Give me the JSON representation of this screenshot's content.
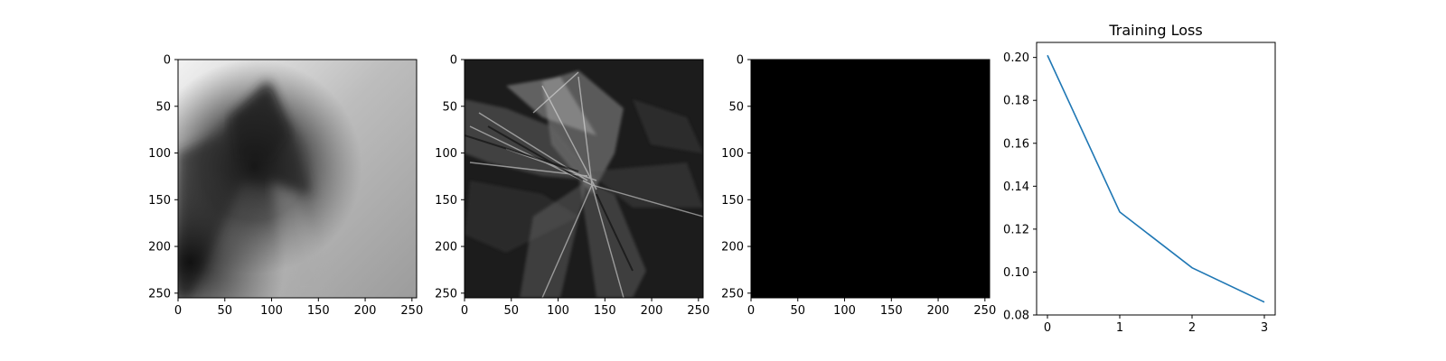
{
  "chart_data": [
    {
      "type": "heatmap",
      "colormap": "gray",
      "description_shown": "grayscale image panel",
      "xlim": [
        0,
        255
      ],
      "ylim": [
        255,
        0
      ],
      "xticks": [
        0,
        50,
        100,
        150,
        200,
        250
      ],
      "yticks": [
        0,
        50,
        100,
        150,
        200,
        250
      ],
      "xtick_labels": [
        "0",
        "50",
        "100",
        "150",
        "200",
        "250"
      ],
      "ytick_labels": [
        "0",
        "50",
        "100",
        "150",
        "200",
        "250"
      ]
    },
    {
      "type": "heatmap",
      "colormap": "gray",
      "xlim": [
        0,
        255
      ],
      "ylim": [
        255,
        0
      ],
      "xticks": [
        0,
        50,
        100,
        150,
        200,
        250
      ],
      "yticks": [
        0,
        50,
        100,
        150,
        200,
        250
      ],
      "xtick_labels": [
        "0",
        "50",
        "100",
        "150",
        "200",
        "250"
      ],
      "ytick_labels": [
        "0",
        "50",
        "100",
        "150",
        "200",
        "250"
      ]
    },
    {
      "type": "heatmap",
      "colormap": "gray",
      "uniform_value": 0,
      "xlim": [
        0,
        255
      ],
      "ylim": [
        255,
        0
      ],
      "xticks": [
        0,
        50,
        100,
        150,
        200,
        250
      ],
      "yticks": [
        0,
        50,
        100,
        150,
        200,
        250
      ],
      "xtick_labels": [
        "0",
        "50",
        "100",
        "150",
        "200",
        "250"
      ],
      "ytick_labels": [
        "0",
        "50",
        "100",
        "150",
        "200",
        "250"
      ]
    },
    {
      "type": "line",
      "title": "Training Loss",
      "xlabel": "",
      "ylabel": "",
      "x": [
        0,
        1,
        2,
        3
      ],
      "series": [
        {
          "values": [
            0.201,
            0.128,
            0.102,
            0.086
          ],
          "color": "#1f77b4"
        }
      ],
      "xlim": [
        -0.15,
        3.15
      ],
      "ylim": [
        0.08,
        0.207
      ],
      "xticks": [
        0,
        1,
        2,
        3
      ],
      "xtick_labels": [
        "0",
        "1",
        "2",
        "3"
      ],
      "yticks": [
        0.08,
        0.1,
        0.12,
        0.14,
        0.16,
        0.18,
        0.2
      ],
      "ytick_labels": [
        "0.08",
        "0.10",
        "0.12",
        "0.14",
        "0.16",
        "0.18",
        "0.20"
      ],
      "grid": false
    }
  ]
}
